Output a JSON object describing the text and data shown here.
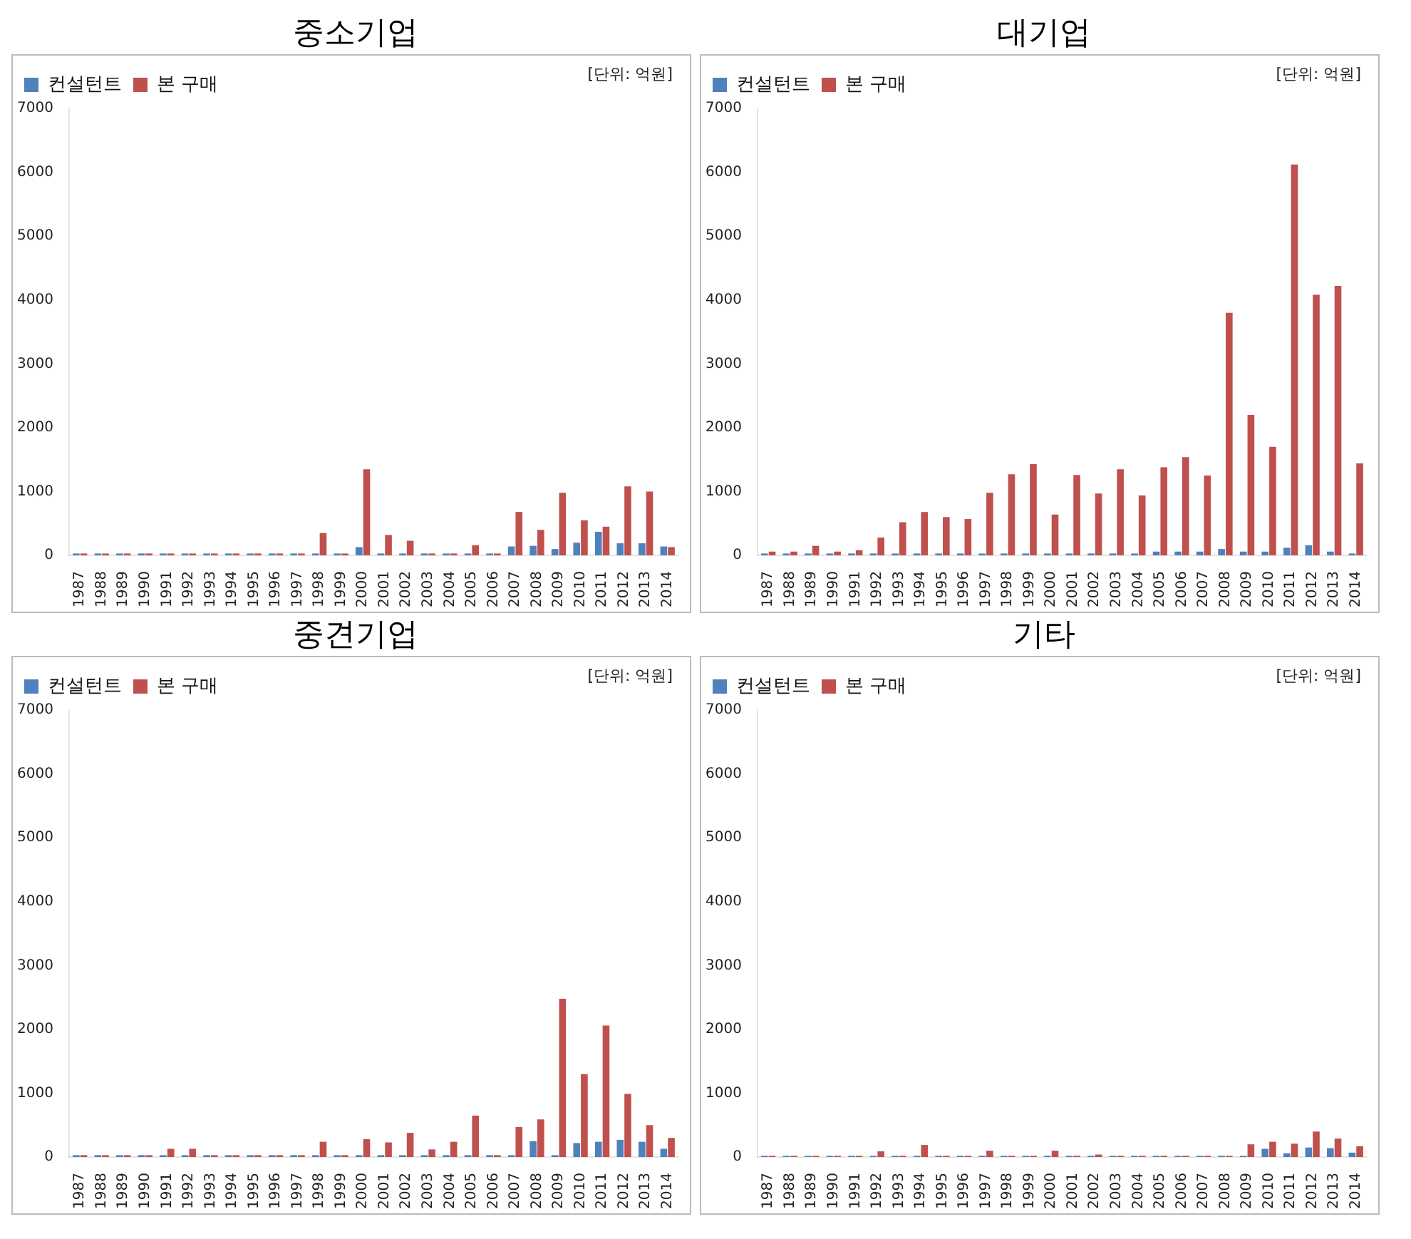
{
  "chart_data": [
    {
      "type": "bar",
      "title": "중소기업",
      "annotations": [
        "[단위: 억원]"
      ],
      "categories": [
        "1987",
        "1988",
        "1989",
        "1990",
        "1991",
        "1992",
        "1993",
        "1994",
        "1995",
        "1996",
        "1997",
        "1998",
        "1999",
        "2000",
        "2001",
        "2002",
        "2003",
        "2004",
        "2005",
        "2006",
        "2007",
        "2008",
        "2009",
        "2010",
        "2011",
        "2012",
        "2013",
        "2014"
      ],
      "series": [
        {
          "name": "컨설턴트",
          "color": "#4f81bd",
          "values": [
            30,
            30,
            30,
            30,
            30,
            30,
            30,
            30,
            30,
            30,
            30,
            30,
            30,
            130,
            30,
            30,
            30,
            30,
            30,
            30,
            140,
            150,
            100,
            200,
            370,
            190,
            190,
            140
          ]
        },
        {
          "name": "본 구매",
          "color": "#c0504d",
          "values": [
            30,
            30,
            30,
            30,
            30,
            30,
            30,
            30,
            30,
            30,
            30,
            350,
            30,
            1350,
            320,
            230,
            30,
            30,
            160,
            30,
            680,
            400,
            980,
            550,
            450,
            1080,
            1000,
            130
          ]
        }
      ],
      "ylim": [
        0,
        7000
      ],
      "yticks": [
        0,
        1000,
        2000,
        3000,
        4000,
        5000,
        6000,
        7000
      ],
      "legend": "top left"
    },
    {
      "type": "bar",
      "title": "대기업",
      "annotations": [
        "[단위: 억원]"
      ],
      "categories": [
        "1987",
        "1988",
        "1989",
        "1990",
        "1991",
        "1992",
        "1993",
        "1994",
        "1995",
        "1996",
        "1997",
        "1998",
        "1999",
        "2000",
        "2001",
        "2002",
        "2003",
        "2004",
        "2005",
        "2006",
        "2007",
        "2008",
        "2009",
        "2010",
        "2011",
        "2012",
        "2013",
        "2014"
      ],
      "series": [
        {
          "name": "컨설턴트",
          "color": "#4f81bd",
          "values": [
            30,
            30,
            30,
            30,
            30,
            30,
            30,
            30,
            30,
            30,
            30,
            30,
            30,
            30,
            30,
            30,
            30,
            30,
            60,
            60,
            60,
            100,
            60,
            60,
            120,
            160,
            60,
            30
          ]
        },
        {
          "name": "본 구매",
          "color": "#c0504d",
          "values": [
            60,
            60,
            150,
            60,
            80,
            280,
            520,
            680,
            600,
            570,
            980,
            1270,
            1430,
            640,
            1260,
            970,
            1350,
            940,
            1380,
            1540,
            1250,
            3800,
            2200,
            1700,
            6120,
            4080,
            4220,
            1440
          ]
        }
      ],
      "ylim": [
        0,
        7000
      ],
      "yticks": [
        0,
        1000,
        2000,
        3000,
        4000,
        5000,
        6000,
        7000
      ],
      "legend": "top left"
    },
    {
      "type": "bar",
      "title": "중견기업",
      "annotations": [
        "[단위: 억원]"
      ],
      "categories": [
        "1987",
        "1988",
        "1989",
        "1990",
        "1991",
        "1992",
        "1993",
        "1994",
        "1995",
        "1996",
        "1997",
        "1998",
        "1999",
        "2000",
        "2001",
        "2002",
        "2003",
        "2004",
        "2005",
        "2006",
        "2007",
        "2008",
        "2009",
        "2010",
        "2011",
        "2012",
        "2013",
        "2014"
      ],
      "series": [
        {
          "name": "컨설턴트",
          "color": "#4f81bd",
          "values": [
            30,
            30,
            30,
            30,
            30,
            30,
            30,
            30,
            30,
            30,
            30,
            30,
            30,
            30,
            30,
            30,
            30,
            30,
            30,
            30,
            30,
            250,
            30,
            220,
            240,
            270,
            240,
            130
          ]
        },
        {
          "name": "본 구매",
          "color": "#c0504d",
          "values": [
            30,
            30,
            30,
            30,
            130,
            130,
            30,
            30,
            30,
            30,
            30,
            240,
            30,
            280,
            230,
            380,
            120,
            240,
            650,
            30,
            470,
            590,
            2480,
            1300,
            2060,
            990,
            500,
            300
          ]
        }
      ],
      "ylim": [
        0,
        7000
      ],
      "yticks": [
        0,
        1000,
        2000,
        3000,
        4000,
        5000,
        6000,
        7000
      ],
      "legend": "top left"
    },
    {
      "type": "bar",
      "title": "기타",
      "annotations": [
        "[단위: 억원]"
      ],
      "categories": [
        "1987",
        "1988",
        "1989",
        "1990",
        "1991",
        "1992",
        "1993",
        "1994",
        "1995",
        "1996",
        "1997",
        "1998",
        "1999",
        "2000",
        "2001",
        "2002",
        "2003",
        "2004",
        "2005",
        "2006",
        "2007",
        "2008",
        "2009",
        "2010",
        "2011",
        "2012",
        "2013",
        "2014"
      ],
      "series": [
        {
          "name": "컨설턴트",
          "color": "#4f81bd",
          "values": [
            20,
            20,
            20,
            20,
            20,
            20,
            20,
            20,
            20,
            20,
            20,
            20,
            20,
            20,
            20,
            20,
            20,
            20,
            20,
            20,
            20,
            20,
            20,
            130,
            60,
            150,
            140,
            70
          ]
        },
        {
          "name": "본 구매",
          "color": "#c0504d",
          "values": [
            20,
            20,
            20,
            20,
            20,
            90,
            20,
            190,
            20,
            20,
            100,
            20,
            20,
            100,
            20,
            40,
            20,
            20,
            20,
            20,
            20,
            20,
            200,
            240,
            210,
            400,
            290,
            170
          ]
        }
      ],
      "ylim": [
        0,
        7000
      ],
      "yticks": [
        0,
        1000,
        2000,
        3000,
        4000,
        5000,
        6000,
        7000
      ],
      "legend": "top left"
    }
  ]
}
